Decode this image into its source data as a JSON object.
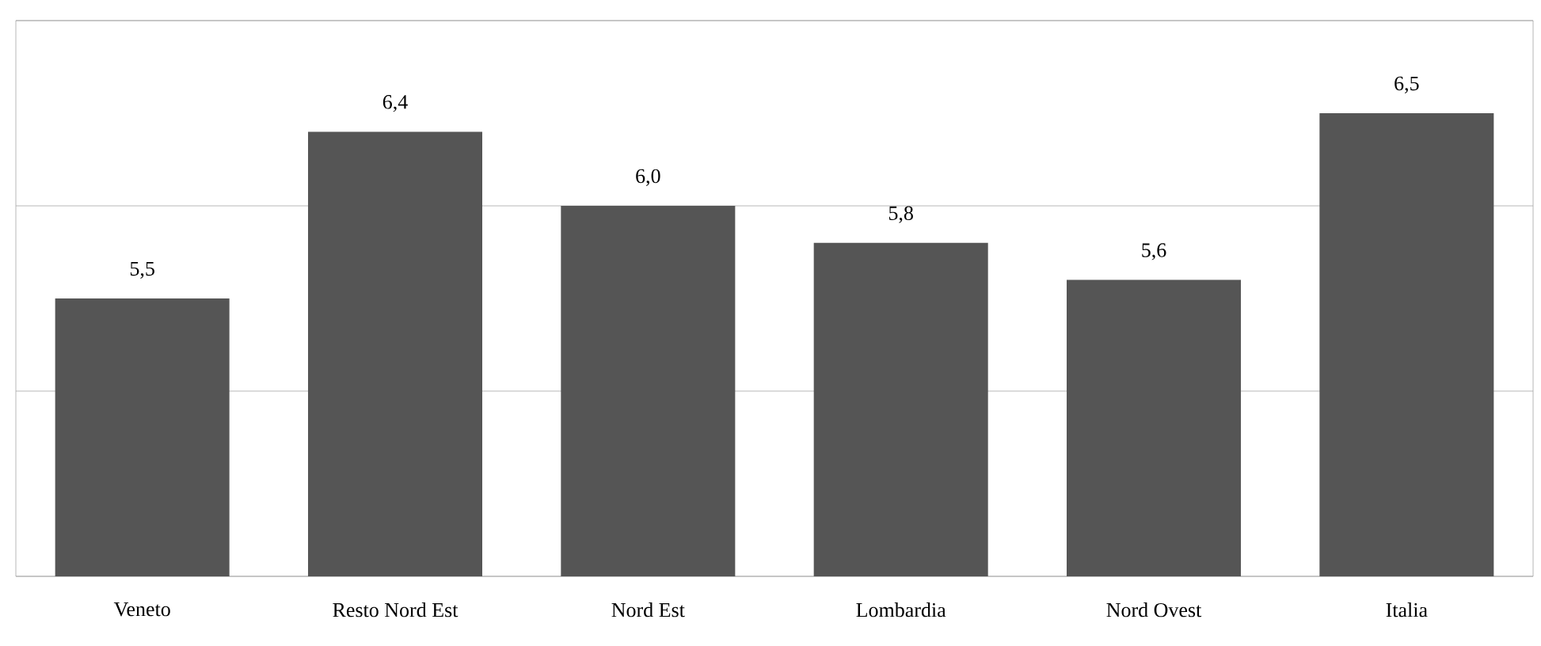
{
  "chart_data": {
    "type": "bar",
    "categories": [
      "Veneto",
      "Resto Nord Est",
      "Nord Est",
      "Lombardia",
      "Nord Ovest",
      "Italia"
    ],
    "values": [
      5.5,
      6.4,
      6.0,
      5.8,
      5.6,
      6.5
    ],
    "value_labels": [
      "5,5",
      "6,4",
      "6,0",
      "5,8",
      "5,6",
      "6,5"
    ],
    "color": "#555555",
    "ylim": [
      4,
      7
    ],
    "yticks": [
      {
        "value": 4,
        "label": null
      },
      {
        "value": 5,
        "label": null
      },
      {
        "value": 6,
        "label": null
      },
      {
        "value": 7,
        "label": null
      }
    ],
    "tick_labels": "x",
    "grid": "y"
  }
}
